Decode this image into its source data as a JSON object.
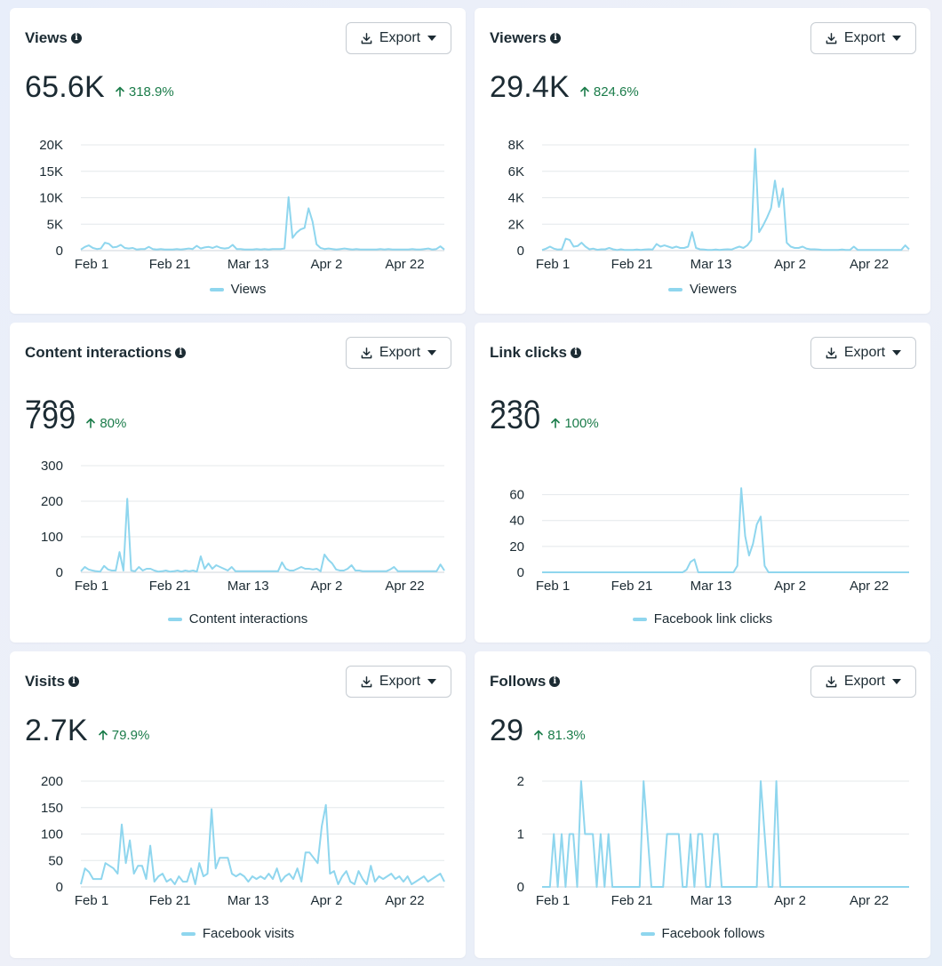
{
  "export_label": "Export",
  "cards": [
    {
      "title": "Views",
      "value": "65.6K",
      "delta": "318.9%",
      "legend": "Views",
      "ghost": "",
      "chart_data": {
        "type": "line",
        "ylim": [
          0,
          20000
        ],
        "yticks": [
          "0",
          "5K",
          "10K",
          "15K",
          "20K"
        ],
        "ytick_values": [
          0,
          5000,
          10000,
          15000,
          20000
        ],
        "xticks": [
          "Feb 1",
          "Feb 21",
          "Mar 13",
          "Apr 2",
          "Apr 22"
        ],
        "xtick_index": [
          0,
          20,
          40,
          60,
          80
        ],
        "series": [
          {
            "name": "Views",
            "color": "#8fd6ee",
            "values": [
              200,
              700,
              1000,
              500,
              300,
              400,
              1500,
              1300,
              600,
              700,
              1100,
              500,
              400,
              500,
              200,
              300,
              300,
              700,
              300,
              200,
              300,
              200,
              200,
              200,
              300,
              200,
              300,
              400,
              300,
              900,
              400,
              600,
              700,
              500,
              800,
              500,
              400,
              500,
              1100,
              300,
              300,
              200,
              200,
              200,
              300,
              200,
              300,
              200,
              300,
              300,
              300,
              400,
              10100,
              2400,
              3400,
              4000,
              4300,
              8000,
              5500,
              1200,
              500,
              300,
              400,
              300,
              200,
              300,
              400,
              300,
              200,
              300,
              200,
              200,
              200,
              200,
              200,
              300,
              200,
              300,
              200,
              200,
              200,
              200,
              200,
              300,
              200,
              200,
              300,
              400,
              200,
              300,
              800,
              200
            ]
          }
        ]
      }
    },
    {
      "title": "Viewers",
      "value": "29.4K",
      "delta": "824.6%",
      "legend": "Viewers",
      "ghost": "",
      "chart_data": {
        "type": "line",
        "ylim": [
          0,
          8000
        ],
        "yticks": [
          "0",
          "2K",
          "4K",
          "6K",
          "8K"
        ],
        "ytick_values": [
          0,
          2000,
          4000,
          6000,
          8000
        ],
        "xticks": [
          "Feb 1",
          "Feb 21",
          "Mar 13",
          "Apr 2",
          "Apr 22"
        ],
        "xtick_index": [
          0,
          20,
          40,
          60,
          80
        ],
        "series": [
          {
            "name": "Viewers",
            "color": "#8fd6ee",
            "values": [
              50,
              150,
              300,
              150,
              80,
              100,
              900,
              800,
              300,
              350,
              600,
              300,
              100,
              150,
              60,
              100,
              100,
              200,
              100,
              50,
              100,
              50,
              50,
              50,
              80,
              50,
              80,
              100,
              80,
              500,
              300,
              400,
              300,
              200,
              300,
              200,
              200,
              300,
              1400,
              200,
              100,
              80,
              50,
              50,
              80,
              50,
              80,
              100,
              80,
              200,
              300,
              200,
              400,
              800,
              7700,
              1400,
              1900,
              2500,
              3200,
              5300,
              3300,
              4700,
              600,
              300,
              200,
              200,
              300,
              150,
              100,
              100,
              80,
              50,
              50,
              50,
              50,
              50,
              80,
              50,
              50,
              300,
              50,
              50,
              50,
              50,
              50,
              50,
              50,
              50,
              50,
              50,
              50,
              50,
              400,
              100
            ]
          }
        ]
      }
    },
    {
      "title": "Content interactions",
      "value": "799",
      "delta": "80%",
      "legend": "Content interactions",
      "ghost": "799",
      "chart_data": {
        "type": "line",
        "ylim": [
          0,
          300
        ],
        "yticks": [
          "0",
          "100",
          "200",
          "300"
        ],
        "ytick_values": [
          0,
          100,
          200,
          300
        ],
        "xticks": [
          "Feb 1",
          "Feb 21",
          "Mar 13",
          "Apr 2",
          "Apr 22"
        ],
        "xtick_index": [
          0,
          20,
          40,
          60,
          80
        ],
        "series": [
          {
            "name": "Content interactions",
            "color": "#8fd6ee",
            "values": [
              3,
              15,
              8,
              5,
              3,
              2,
              18,
              8,
              5,
              5,
              57,
              5,
              207,
              5,
              3,
              15,
              5,
              10,
              10,
              5,
              2,
              3,
              5,
              2,
              3,
              5,
              2,
              5,
              3,
              5,
              2,
              45,
              10,
              25,
              10,
              20,
              15,
              10,
              5,
              15,
              3,
              3,
              3,
              3,
              3,
              3,
              3,
              3,
              3,
              3,
              3,
              3,
              28,
              10,
              5,
              5,
              10,
              15,
              10,
              10,
              8,
              10,
              3,
              50,
              35,
              25,
              8,
              5,
              5,
              10,
              20,
              5,
              5,
              3,
              3,
              3,
              3,
              3,
              3,
              3,
              8,
              15,
              3,
              3,
              3,
              3,
              3,
              3,
              3,
              3,
              3,
              3,
              3,
              22,
              5
            ]
          }
        ]
      }
    },
    {
      "title": "Link clicks",
      "value": "230",
      "delta": "100%",
      "legend": "Facebook link clicks",
      "ghost": "230",
      "chart_data": {
        "type": "line",
        "ylim": [
          0,
          70
        ],
        "yticks": [
          "0",
          "20",
          "40",
          "60"
        ],
        "ytick_values": [
          0,
          20,
          40,
          60
        ],
        "xticks": [
          "Feb 1",
          "Feb 21",
          "Mar 13",
          "Apr 2",
          "Apr 22"
        ],
        "xtick_index": [
          0,
          20,
          40,
          60,
          80
        ],
        "series": [
          {
            "name": "Facebook link clicks",
            "color": "#8fd6ee",
            "values": [
              0,
              0,
              0,
              0,
              0,
              0,
              0,
              0,
              0,
              0,
              0,
              0,
              0,
              0,
              0,
              0,
              0,
              0,
              0,
              0,
              0,
              0,
              0,
              0,
              0,
              0,
              0,
              0,
              0,
              0,
              0,
              0,
              0,
              0,
              0,
              0,
              0,
              0,
              0,
              0,
              0,
              0,
              0,
              0,
              0,
              0,
              0,
              0,
              0,
              0,
              0,
              0,
              0,
              0,
              0,
              0,
              0,
              0,
              0,
              0,
              0,
              0,
              0,
              0,
              0,
              0,
              0,
              0,
              0,
              0,
              0,
              0,
              0,
              0,
              0,
              0,
              0,
              0,
              0,
              0,
              0,
              0,
              0,
              0,
              0,
              0,
              0,
              0,
              0,
              0,
              0,
              0,
              0,
              0,
              0
            ]
          }
        ],
        "overrides": {
          "37": 2,
          "38": 8,
          "39": 10,
          "40": 0,
          "49": 0,
          "50": 5,
          "51": 65,
          "52": 28,
          "53": 13,
          "54": 22,
          "55": 37,
          "56": 43,
          "57": 5,
          "58": 0
        }
      }
    },
    {
      "title": "Visits",
      "value": "2.7K",
      "delta": "79.9%",
      "legend": "Facebook visits",
      "ghost": "",
      "chart_data": {
        "type": "line",
        "ylim": [
          0,
          200
        ],
        "yticks": [
          "0",
          "50",
          "100",
          "150",
          "200"
        ],
        "ytick_values": [
          0,
          50,
          100,
          150,
          200
        ],
        "xticks": [
          "Feb 1",
          "Feb 21",
          "Mar 13",
          "Apr 2",
          "Apr 22"
        ],
        "xtick_index": [
          0,
          20,
          40,
          60,
          80
        ],
        "series": [
          {
            "name": "Facebook visits",
            "color": "#8fd6ee",
            "values": [
              5,
              35,
              28,
              15,
              15,
              15,
              45,
              40,
              35,
              25,
              118,
              45,
              88,
              25,
              40,
              40,
              15,
              78,
              10,
              20,
              25,
              10,
              15,
              5,
              20,
              10,
              10,
              35,
              5,
              45,
              20,
              25,
              147,
              35,
              55,
              55,
              55,
              25,
              20,
              25,
              20,
              10,
              20,
              15,
              20,
              15,
              25,
              15,
              35,
              10,
              20,
              25,
              15,
              35,
              10,
              65,
              65,
              55,
              45,
              115,
              155,
              25,
              30,
              5,
              20,
              30,
              10,
              5,
              30,
              15,
              5,
              40,
              10,
              20,
              15,
              20,
              25,
              15,
              20,
              10,
              20,
              5,
              10,
              15,
              20,
              10,
              15,
              20,
              25,
              10
            ]
          }
        ]
      }
    },
    {
      "title": "Follows",
      "value": "29",
      "delta": "81.3%",
      "legend": "Facebook follows",
      "ghost": "",
      "chart_data": {
        "type": "line",
        "ylim": [
          0,
          2
        ],
        "yticks": [
          "0",
          "1",
          "2"
        ],
        "ytick_values": [
          0,
          1,
          2
        ],
        "xticks": [
          "Feb 1",
          "Feb 21",
          "Mar 13",
          "Apr 2",
          "Apr 22"
        ],
        "xtick_index": [
          0,
          20,
          40,
          60,
          80
        ],
        "series": [
          {
            "name": "Facebook follows",
            "color": "#8fd6ee",
            "values": [
              0,
              0,
              0,
              1,
              0,
              1,
              0,
              1,
              1,
              0,
              2,
              1,
              1,
              1,
              0,
              1,
              0,
              1,
              0,
              0,
              0,
              0,
              0,
              0,
              0,
              0,
              2,
              1,
              0,
              0,
              0,
              0,
              1,
              1,
              1,
              1,
              0,
              0,
              1,
              0,
              1,
              1,
              0,
              0,
              1,
              1,
              0,
              0,
              0,
              0,
              0,
              0,
              0,
              0,
              0,
              0,
              2,
              1,
              0,
              0,
              2,
              0,
              0,
              0,
              0,
              0,
              0,
              0,
              0,
              0,
              0,
              0,
              0,
              0,
              0,
              0,
              0,
              0,
              0,
              0,
              0,
              0,
              0,
              0,
              0,
              0,
              0,
              0,
              0,
              0,
              0,
              0,
              0,
              0,
              0
            ]
          }
        ]
      }
    }
  ]
}
